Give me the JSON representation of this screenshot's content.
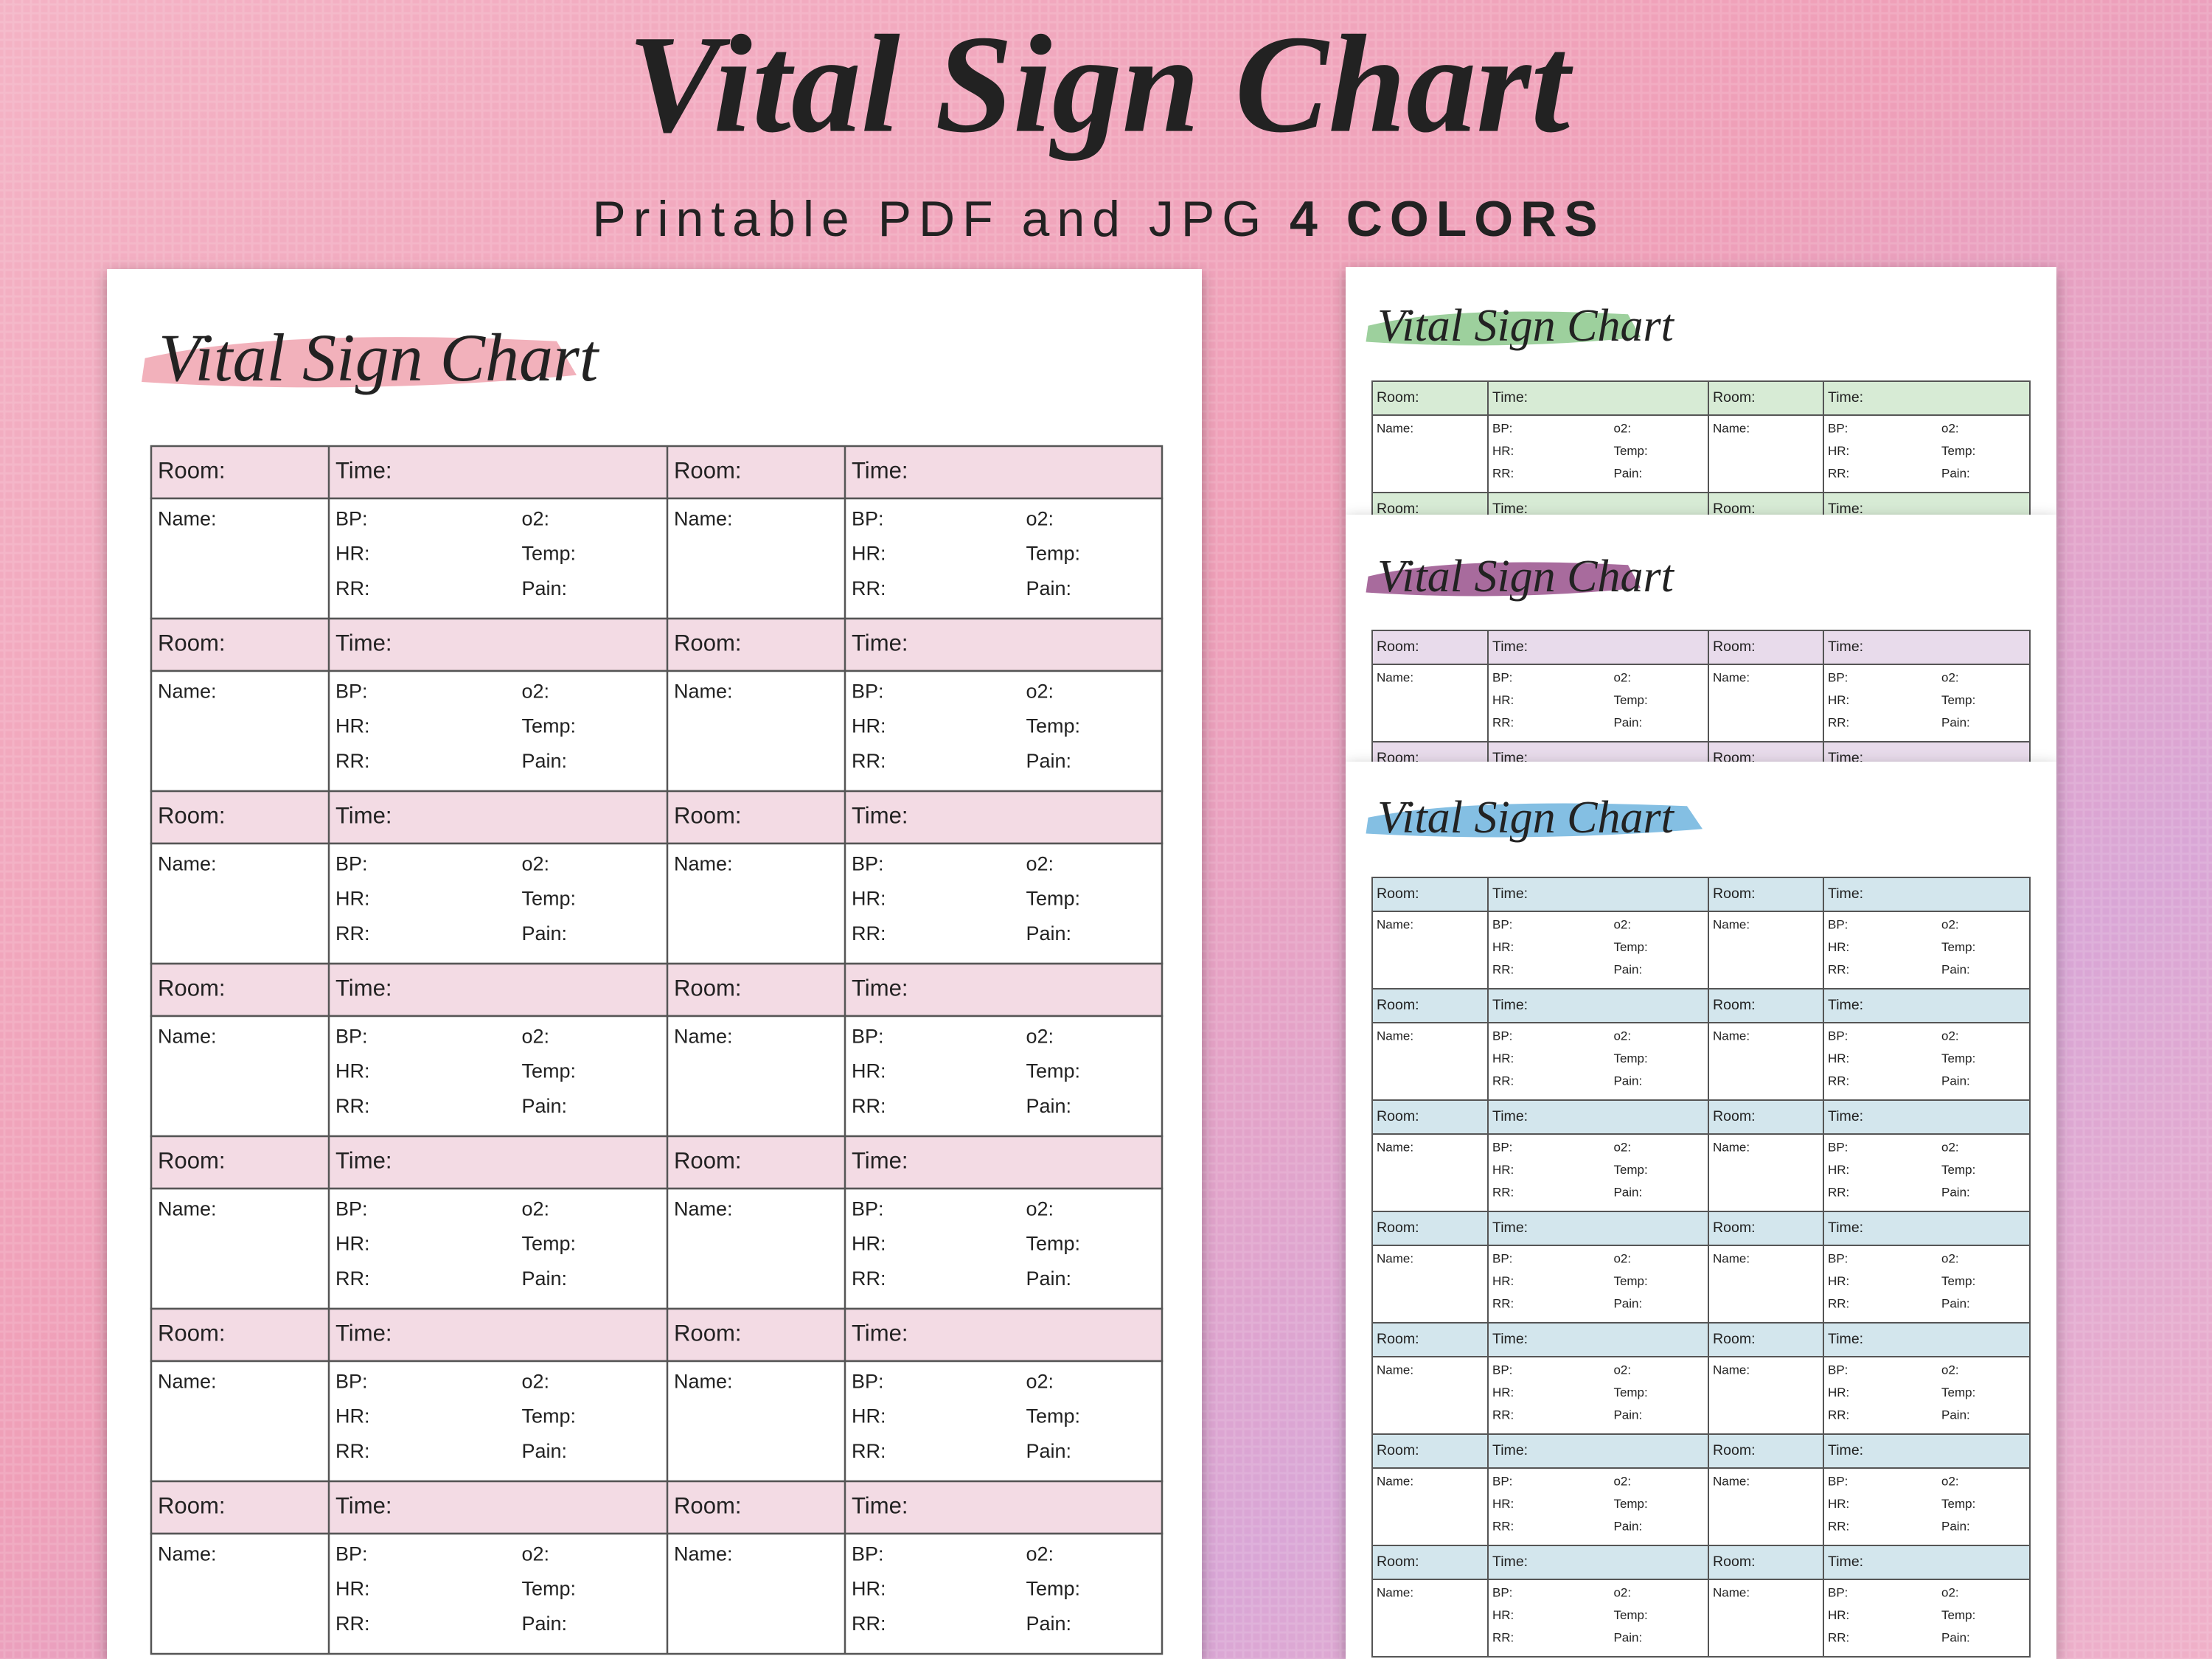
{
  "header": {
    "title": "Vital Sign Chart",
    "subtitle": "Printable PDF and JPG",
    "highlight": "4 COLORS"
  },
  "form": {
    "header_cells": [
      "Room:",
      "Time:",
      "Room:",
      "Time:"
    ],
    "name": "Name:",
    "vitals": [
      [
        "BP:",
        "o2:"
      ],
      [
        "HR:",
        "Temp:"
      ],
      [
        "RR:",
        "Pain:"
      ]
    ]
  },
  "sheets": [
    {
      "title": "Vital Sign Chart",
      "color": "#f3dbe4",
      "brush": "#ee97a4"
    },
    {
      "title": "Vital Sign Chart",
      "color": "#d7ebd5",
      "brush": "#7cc07c"
    },
    {
      "title": "Vital Sign Chart",
      "color": "#e8dbeb",
      "brush": "#8b3a7c"
    },
    {
      "title": "Vital Sign Chart",
      "color": "#d3e6ed",
      "brush": "#5ba9da"
    }
  ]
}
